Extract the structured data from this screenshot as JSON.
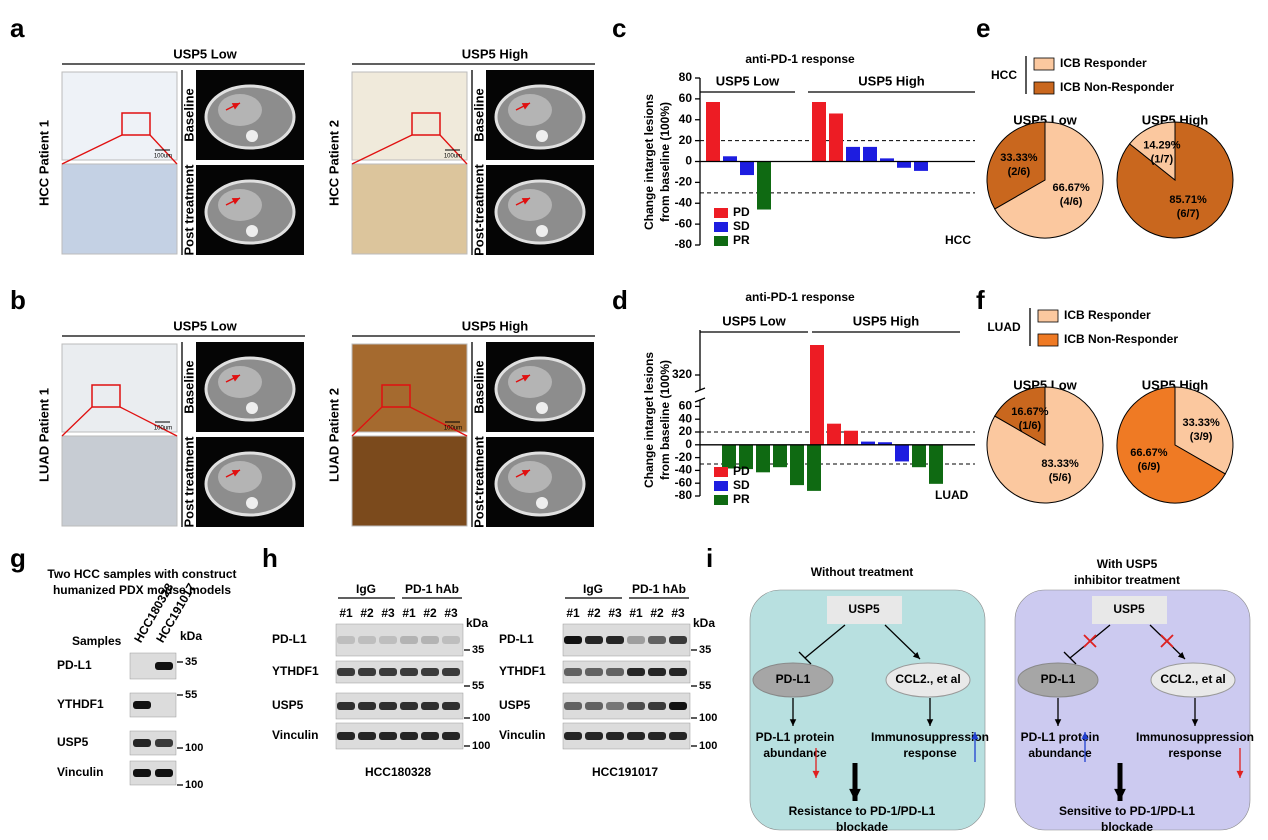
{
  "panel_labels": [
    "a",
    "b",
    "c",
    "d",
    "e",
    "f",
    "g",
    "h",
    "i"
  ],
  "imaging": [
    {
      "groups": [
        {
          "title": "USP5 Low",
          "patient": "HCC Patient 1",
          "rows": [
            "Baseline",
            "Post treatment"
          ],
          "scale_bar": "100um"
        },
        {
          "title": "USP5 High",
          "patient": "HCC Patient 2",
          "rows": [
            "Baseline",
            "Post-treatment"
          ],
          "scale_bar": "100um"
        }
      ]
    },
    {
      "groups": [
        {
          "title": "USP5 Low",
          "patient": "LUAD Patient 1",
          "rows": [
            "Baseline",
            "Post treatment"
          ],
          "scale_bar": "100um"
        },
        {
          "title": "USP5 High",
          "patient": "LUAD Patient 2",
          "rows": [
            "Baseline",
            "Post-treatment"
          ],
          "scale_bar": "100um"
        }
      ]
    }
  ],
  "chart_data": [
    {
      "type": "bar",
      "title": "anti-PD-1 response",
      "y_label": [
        "Change intarget lesions",
        "from baseline (100%)"
      ],
      "ylim": [
        -80,
        80
      ],
      "yticks": [
        -80,
        -60,
        -40,
        -20,
        0,
        20,
        40,
        60,
        80
      ],
      "reference_lines": [
        20,
        -30
      ],
      "legend": [
        {
          "name": "PD",
          "color": "#ed1c24"
        },
        {
          "name": "SD",
          "color": "#1d1de0"
        },
        {
          "name": "PR",
          "color": "#0f6a12"
        }
      ],
      "groups": [
        {
          "name": "USP5 Low",
          "series": [
            {
              "values": [
                57
              ]
            },
            {
              "values": [
                5,
                -13
              ]
            },
            {
              "values": [
                -46
              ]
            }
          ]
        },
        {
          "name": "USP5 High",
          "series": [
            {
              "values": [
                57,
                46
              ]
            },
            {
              "values": [
                14,
                14,
                3,
                -6,
                -9
              ]
            },
            {
              "values": []
            }
          ]
        }
      ],
      "annotation": "HCC"
    },
    {
      "type": "bar",
      "title": "anti-PD-1 response",
      "y_label": [
        "Change intarget lesions",
        "from baseline (100%)"
      ],
      "ylim": [
        -80,
        350
      ],
      "ybreak": [
        70,
        310
      ],
      "yticks": [
        -80,
        -60,
        -40,
        -20,
        0,
        20,
        40,
        60,
        320
      ],
      "reference_lines": [
        20,
        -30
      ],
      "legend": [
        {
          "name": "PD",
          "color": "#ed1c24"
        },
        {
          "name": "SD",
          "color": "#1d1de0"
        },
        {
          "name": "PR",
          "color": "#0f6a12"
        }
      ],
      "groups": [
        {
          "name": "USP5 Low",
          "series": [
            {
              "values": []
            },
            {
              "values": []
            },
            {
              "values": [
                -37,
                -38,
                -43,
                -35,
                -63,
                -72
              ]
            }
          ]
        },
        {
          "name": "USP5 High",
          "series": [
            {
              "values": [
                340,
                33,
                22
              ]
            },
            {
              "values": [
                5,
                4,
                -26
              ]
            },
            {
              "values": [
                -35,
                -61
              ]
            }
          ]
        }
      ],
      "annotation": "LUAD"
    },
    {
      "type": "pie",
      "title": "USP5 Low",
      "values": [
        66.67,
        33.33
      ],
      "value_labels": [
        "66.67%",
        "33.33%"
      ],
      "fractions": [
        "(4/6)",
        "(2/6)"
      ],
      "colors": [
        "#fbc89f",
        "#c9671e"
      ]
    },
    {
      "type": "pie",
      "title": "USP5 High",
      "values": [
        85.71,
        14.29
      ],
      "value_labels": [
        "85.71%",
        "14.29%"
      ],
      "fractions": [
        "(6/7)",
        "(1/7)"
      ],
      "colors": [
        "#c9671e",
        "#fbc89f"
      ]
    },
    {
      "type": "pie",
      "title": "USP5 Low",
      "values": [
        83.33,
        16.67
      ],
      "value_labels": [
        "83.33%",
        "16.67%"
      ],
      "fractions": [
        "(5/6)",
        "(1/6)"
      ],
      "colors": [
        "#fbc89f",
        "#c9671e"
      ]
    },
    {
      "type": "pie",
      "title": "USP5 High",
      "values": [
        33.33,
        66.67
      ],
      "value_labels": [
        "33.33%",
        "66.67%"
      ],
      "fractions": [
        "(3/9)",
        "(6/9)"
      ],
      "colors": [
        "#fbc89f",
        "#ef7a24"
      ]
    }
  ],
  "pie_legends": [
    {
      "group": "HCC",
      "entries": [
        {
          "name": "ICB Responder",
          "color": "#fbc89f"
        },
        {
          "name": "ICB Non-Responder",
          "color": "#c9671e"
        }
      ]
    },
    {
      "group": "LUAD",
      "entries": [
        {
          "name": "ICB Responder",
          "color": "#fbc89f"
        },
        {
          "name": "ICB Non-Responder",
          "color": "#ef7a24"
        }
      ]
    }
  ],
  "blots": [
    {
      "title": [
        "Two HCC samples with construct",
        "humanized PDX mouse models"
      ],
      "sample_header": "Samples",
      "lanes": [
        "HCC180328",
        "HCC191017"
      ],
      "unit": "kDa",
      "rows": [
        "PD-L1",
        "YTHDF1",
        "USP5",
        "Vinculin"
      ],
      "markers": [
        35,
        55,
        100,
        100
      ]
    },
    {
      "lane_groups": [
        "IgG",
        "PD-1 hAb"
      ],
      "lanes": [
        "#1",
        "#2",
        "#3",
        "#1",
        "#2",
        "#3"
      ],
      "unit": "kDa",
      "rows": [
        "PD-L1",
        "YTHDF1",
        "USP5",
        "Vinculin"
      ],
      "markers": [
        35,
        55,
        100,
        100
      ],
      "caption": "HCC180328"
    },
    {
      "lane_groups": [
        "IgG",
        "PD-1 hAb"
      ],
      "lanes": [
        "#1",
        "#2",
        "#3",
        "#1",
        "#2",
        "#3"
      ],
      "unit": "kDa",
      "rows": [
        "PD-L1",
        "YTHDF1",
        "USP5",
        "Vinculin"
      ],
      "markers": [
        35,
        55,
        100,
        100
      ],
      "caption": "HCC191017"
    }
  ],
  "schemes": [
    {
      "title": [
        "Without treatment"
      ],
      "source": "USP5",
      "targets": [
        "PD-L1",
        "CCL2., et al"
      ],
      "outcomes": [
        [
          "PD-L1 protein",
          "abundance"
        ],
        [
          "Immunosuppression",
          "response"
        ]
      ],
      "conclusion": [
        "Resistance to PD-1/PD-L1",
        "blockade"
      ]
    },
    {
      "title": [
        "With USP5",
        "inhibitor treatment"
      ],
      "source": "USP5",
      "targets": [
        "PD-L1",
        "CCL2., et al"
      ],
      "outcomes": [
        [
          "PD-L1 protein",
          "abundance"
        ],
        [
          "Immunosuppression",
          "response"
        ]
      ],
      "conclusion": [
        "Sensitive to PD-1/PD-L1",
        "blockade"
      ]
    }
  ]
}
